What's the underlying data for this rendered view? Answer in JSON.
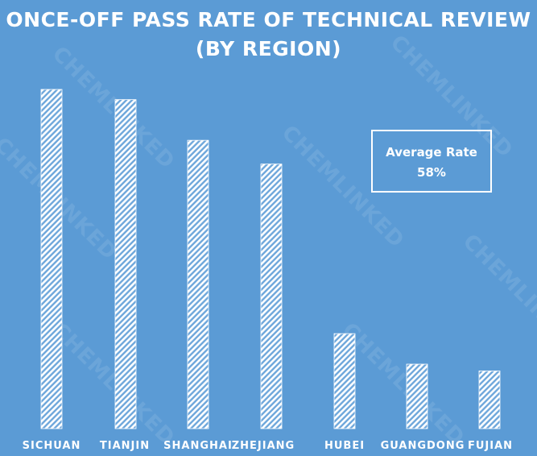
{
  "chart_data": {
    "type": "bar",
    "title_line1": "ONCE-OFF PASS RATE OF TECHNICAL REVIEW",
    "title_line2": "(BY REGION)",
    "categories": [
      "SICHUAN",
      "TIANJIN",
      "SHANGHAI",
      "ZHEJIANG",
      "HUBEI",
      "GUANGDONG",
      "FUJIAN"
    ],
    "values": [
      100,
      97,
      85,
      78,
      28,
      19,
      17
    ],
    "ylim": [
      0,
      100
    ],
    "grid": false,
    "legend": "none",
    "bar_fill": "white diagonal hatch",
    "annotation": {
      "label": "Average Rate",
      "value": "58%"
    }
  },
  "watermark": "CHEMLINKED",
  "colors": {
    "background": "#5b9bd5",
    "bar": "#ffffff",
    "text": "#ffffff"
  }
}
